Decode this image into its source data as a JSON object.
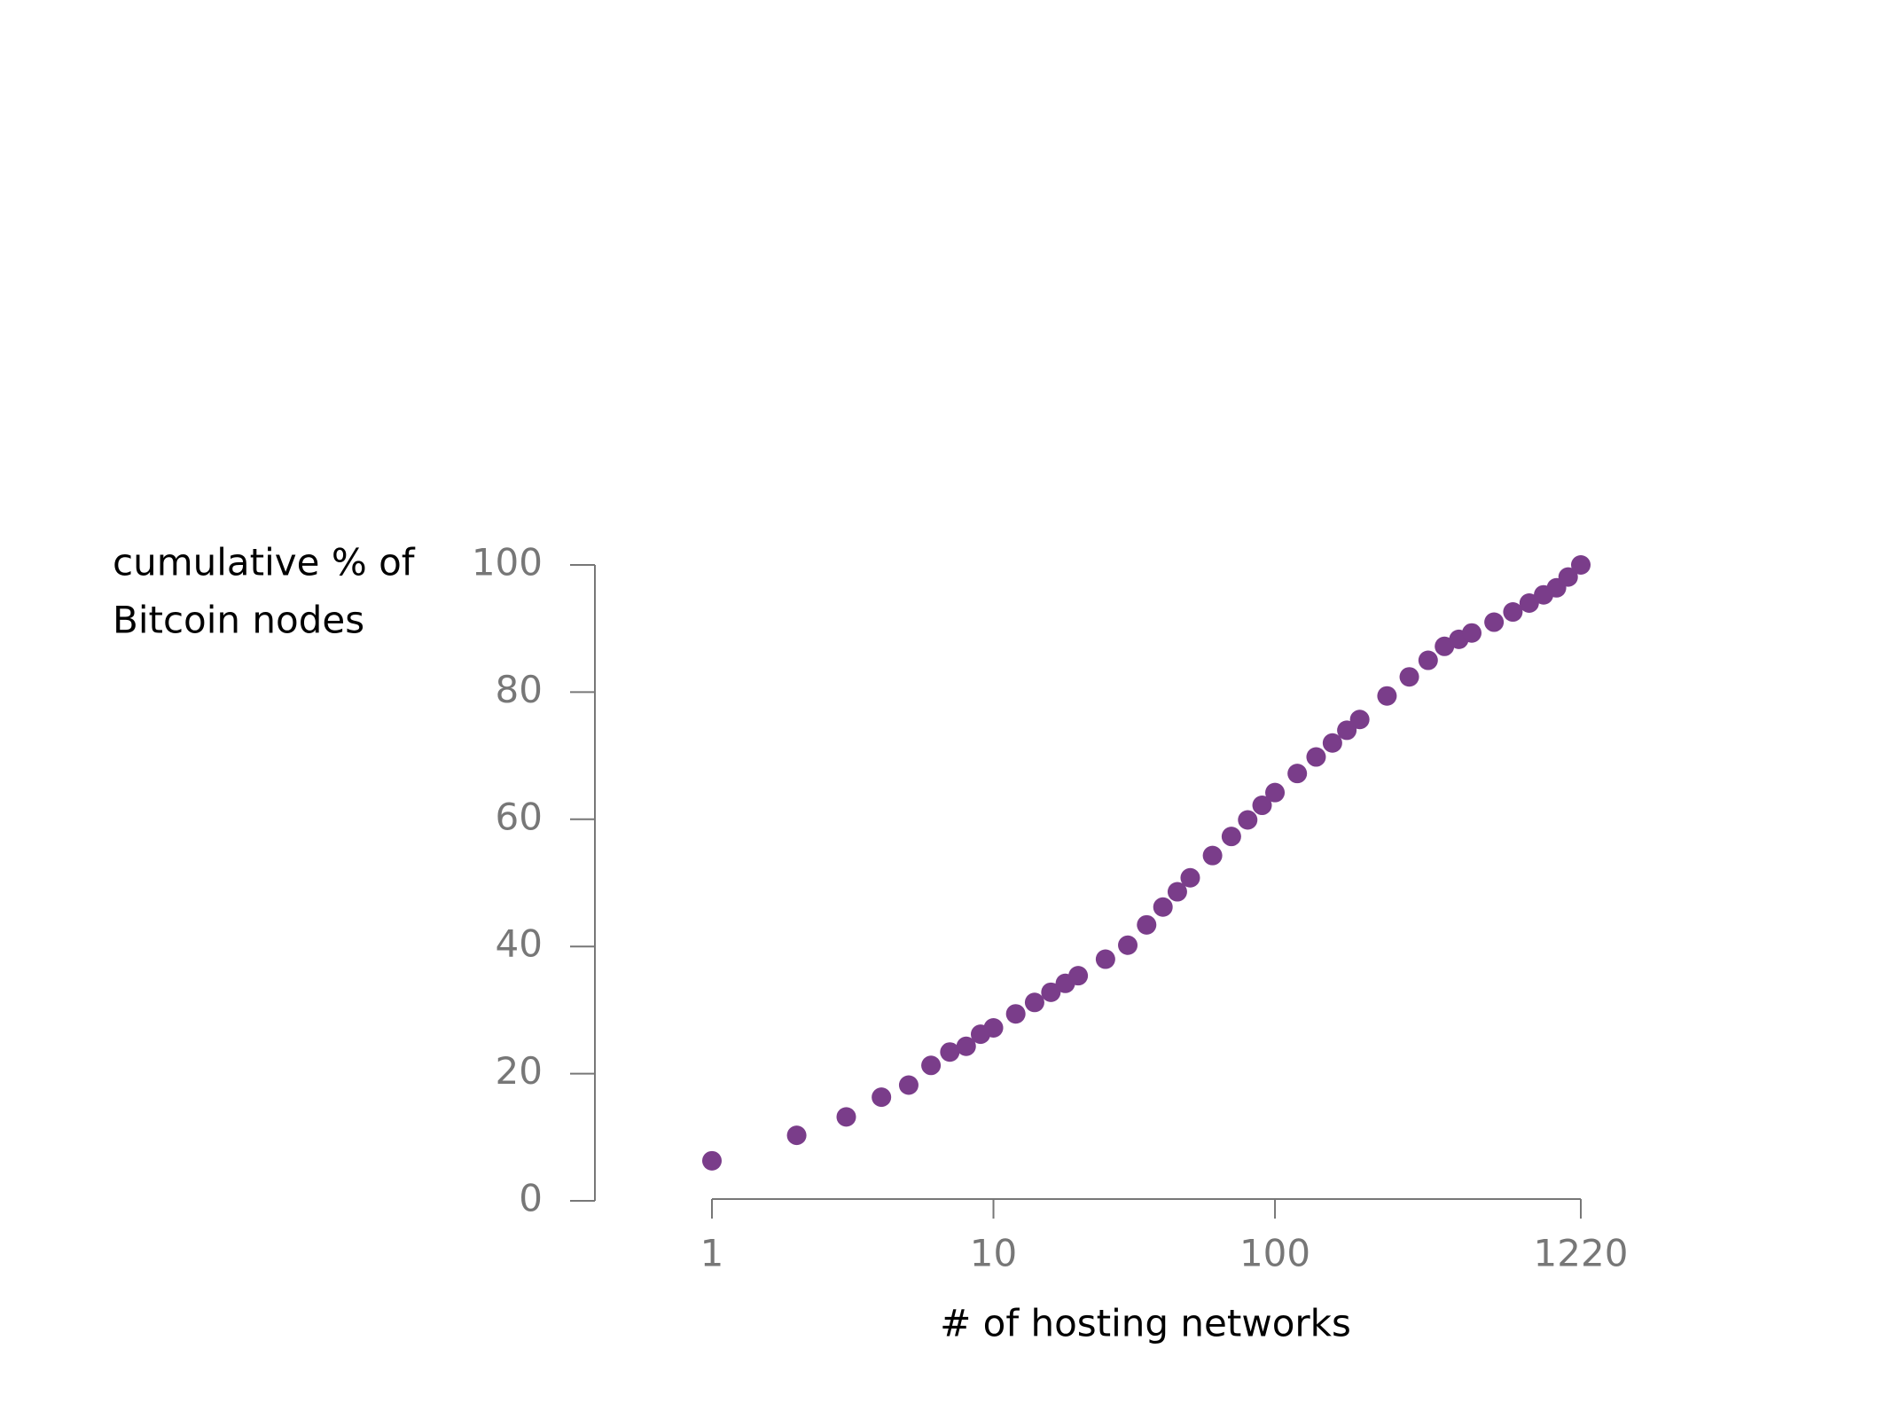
{
  "chart_data": {
    "type": "scatter",
    "x_label": "# of hosting networks",
    "y_label": [
      "cumulative % of",
      "Bitcoin nodes"
    ],
    "x": [
      1,
      2,
      3,
      4,
      5,
      6,
      7,
      8,
      9,
      10,
      12,
      14,
      16,
      18,
      20,
      25,
      30,
      35,
      40,
      45,
      50,
      60,
      70,
      80,
      90,
      100,
      120,
      140,
      160,
      180,
      200,
      250,
      300,
      350,
      400,
      450,
      500,
      600,
      700,
      800,
      900,
      1000,
      1100,
      1220
    ],
    "values": [
      6.3,
      10.3,
      13.2,
      16.3,
      18.2,
      21.3,
      23.4,
      24.3,
      26.2,
      27.2,
      29.4,
      31.2,
      32.8,
      34.2,
      35.4,
      38.0,
      40.2,
      43.4,
      46.2,
      48.6,
      50.8,
      54.3,
      57.3,
      59.9,
      62.2,
      64.2,
      67.2,
      69.8,
      72.0,
      74.0,
      75.7,
      79.4,
      82.4,
      85.0,
      87.2,
      88.3,
      89.3,
      91.0,
      92.6,
      94.0,
      95.3,
      96.4,
      98.1,
      100
    ],
    "color": "#7a3d8a",
    "xlim": [
      1,
      1220
    ],
    "xticks": [
      1,
      10,
      100,
      1220
    ],
    "x_log": true,
    "ylim": [
      0,
      100
    ],
    "yticks": [
      0,
      20,
      40,
      60,
      80,
      100
    ],
    "grid": false
  }
}
